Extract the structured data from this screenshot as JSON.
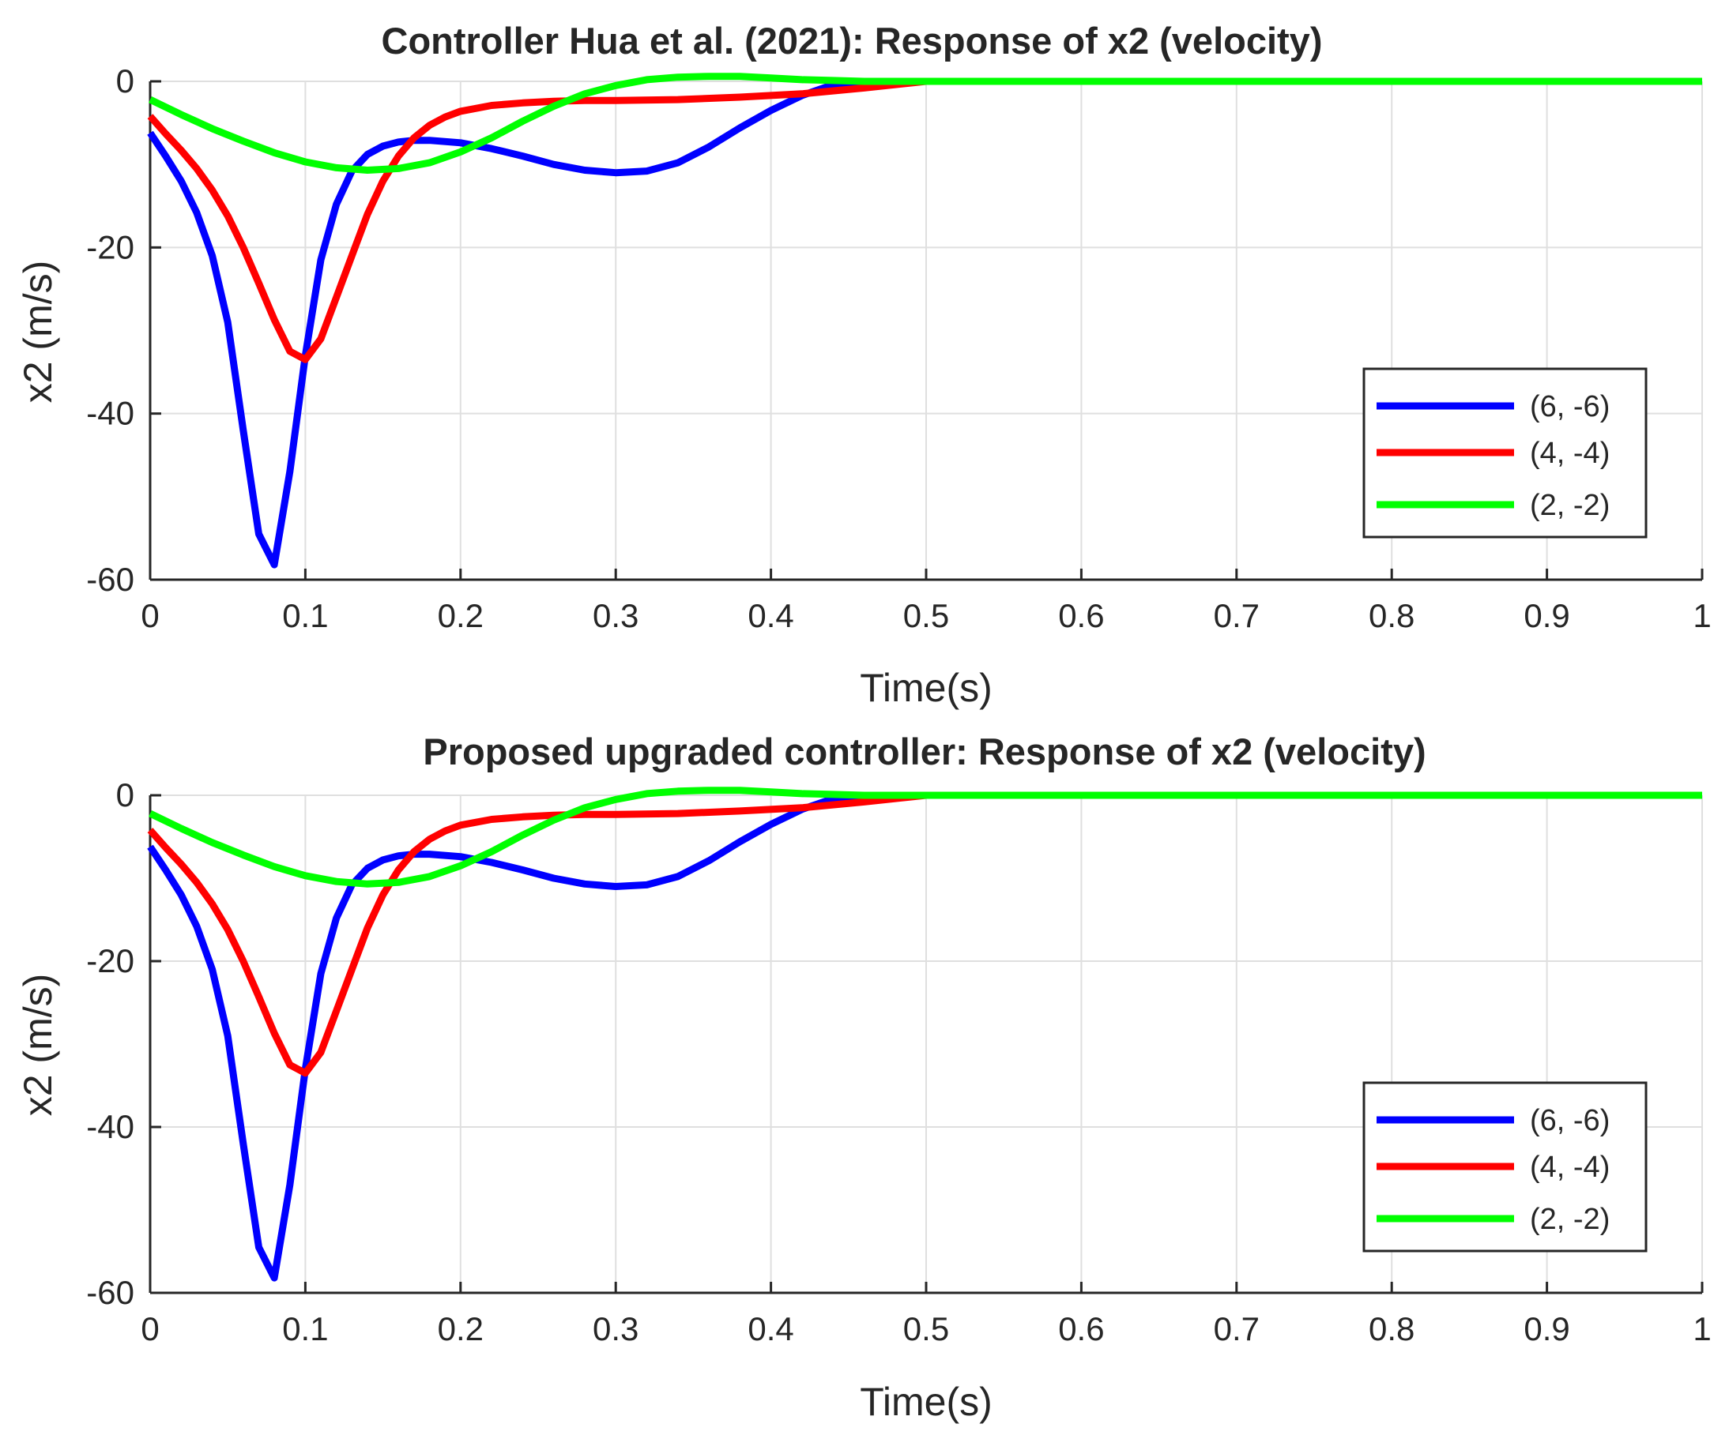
{
  "chart_data": [
    {
      "type": "line",
      "title": "Controller Hua et al. (2021): Response of x2 (velocity)",
      "xlabel": "Time(s)",
      "ylabel": "x2 (m/s)",
      "xlim": [
        0,
        1
      ],
      "ylim": [
        -60,
        0
      ],
      "xticks": [
        0,
        0.1,
        0.2,
        0.3,
        0.4,
        0.5,
        0.6,
        0.7,
        0.8,
        0.9,
        1
      ],
      "xtick_labels": [
        "0",
        "0.1",
        "0.2",
        "0.3",
        "0.4",
        "0.5",
        "0.6",
        "0.7",
        "0.8",
        "0.9",
        "1"
      ],
      "yticks": [
        0,
        -20,
        -40,
        -60
      ],
      "ytick_labels": [
        "0",
        "-20",
        "-40",
        "-60"
      ],
      "grid": true,
      "legend_position": "bottom-right",
      "series": [
        {
          "name": "(6, -6)",
          "color": "#0000ff",
          "x": [
            0,
            0.01,
            0.02,
            0.03,
            0.04,
            0.05,
            0.06,
            0.07,
            0.08,
            0.09,
            0.1,
            0.11,
            0.12,
            0.13,
            0.14,
            0.15,
            0.16,
            0.17,
            0.18,
            0.2,
            0.22,
            0.24,
            0.26,
            0.28,
            0.3,
            0.32,
            0.34,
            0.36,
            0.38,
            0.4,
            0.42,
            0.44,
            0.46,
            0.48,
            0.5,
            1
          ],
          "y": [
            -6.2,
            -9,
            -12,
            -15.8,
            -21,
            -29,
            -42,
            -54.5,
            -58.2,
            -47,
            -33,
            -21.5,
            -14.8,
            -10.8,
            -8.8,
            -7.8,
            -7.3,
            -7.1,
            -7.1,
            -7.4,
            -8.1,
            -9,
            -10,
            -10.7,
            -11,
            -10.8,
            -9.8,
            -7.9,
            -5.6,
            -3.5,
            -1.7,
            -0.4,
            0,
            0,
            0,
            0
          ]
        },
        {
          "name": "(4, -4)",
          "color": "#ff0000",
          "x": [
            0,
            0.01,
            0.02,
            0.03,
            0.04,
            0.05,
            0.06,
            0.07,
            0.08,
            0.09,
            0.1,
            0.11,
            0.12,
            0.13,
            0.14,
            0.15,
            0.16,
            0.17,
            0.18,
            0.19,
            0.2,
            0.22,
            0.24,
            0.26,
            0.28,
            0.3,
            0.34,
            0.38,
            0.42,
            0.46,
            0.5,
            1
          ],
          "y": [
            -4.2,
            -6.3,
            -8.3,
            -10.5,
            -13.1,
            -16.2,
            -20,
            -24.3,
            -28.7,
            -32.5,
            -33.5,
            -31,
            -26,
            -21,
            -16,
            -12,
            -9,
            -6.8,
            -5.3,
            -4.3,
            -3.6,
            -2.9,
            -2.6,
            -2.4,
            -2.3,
            -2.3,
            -2.2,
            -1.9,
            -1.5,
            -0.8,
            0,
            0
          ]
        },
        {
          "name": "(2, -2)",
          "color": "#00ff00",
          "x": [
            0,
            0.02,
            0.04,
            0.06,
            0.08,
            0.1,
            0.12,
            0.14,
            0.16,
            0.18,
            0.2,
            0.22,
            0.24,
            0.26,
            0.28,
            0.3,
            0.32,
            0.34,
            0.36,
            0.38,
            0.4,
            0.42,
            0.44,
            0.46,
            0.48,
            0.5,
            1
          ],
          "y": [
            -2.2,
            -4,
            -5.7,
            -7.2,
            -8.6,
            -9.7,
            -10.4,
            -10.7,
            -10.5,
            -9.8,
            -8.5,
            -6.8,
            -4.8,
            -3,
            -1.5,
            -0.5,
            0.2,
            0.5,
            0.6,
            0.6,
            0.4,
            0.2,
            0.1,
            0,
            0,
            0,
            0
          ]
        }
      ]
    },
    {
      "type": "line",
      "title": "Proposed upgraded controller: Response of x2 (velocity)",
      "xlabel": "Time(s)",
      "ylabel": "x2 (m/s)",
      "xlim": [
        0,
        1
      ],
      "ylim": [
        -60,
        0
      ],
      "xticks": [
        0,
        0.1,
        0.2,
        0.3,
        0.4,
        0.5,
        0.6,
        0.7,
        0.8,
        0.9,
        1
      ],
      "xtick_labels": [
        "0",
        "0.1",
        "0.2",
        "0.3",
        "0.4",
        "0.5",
        "0.6",
        "0.7",
        "0.8",
        "0.9",
        "1"
      ],
      "yticks": [
        0,
        -20,
        -40,
        -60
      ],
      "ytick_labels": [
        "0",
        "-20",
        "-40",
        "-60"
      ],
      "grid": true,
      "legend_position": "bottom-right",
      "series": [
        {
          "name": "(6, -6)",
          "color": "#0000ff",
          "x": [
            0,
            0.01,
            0.02,
            0.03,
            0.04,
            0.05,
            0.06,
            0.07,
            0.08,
            0.09,
            0.1,
            0.11,
            0.12,
            0.13,
            0.14,
            0.15,
            0.16,
            0.17,
            0.18,
            0.2,
            0.22,
            0.24,
            0.26,
            0.28,
            0.3,
            0.32,
            0.34,
            0.36,
            0.38,
            0.4,
            0.42,
            0.44,
            0.46,
            0.48,
            0.5,
            1
          ],
          "y": [
            -6.2,
            -9,
            -12,
            -15.8,
            -21,
            -29,
            -42,
            -54.5,
            -58.2,
            -47,
            -33,
            -21.5,
            -14.8,
            -10.8,
            -8.8,
            -7.8,
            -7.3,
            -7.1,
            -7.1,
            -7.4,
            -8.1,
            -9,
            -10,
            -10.7,
            -11,
            -10.8,
            -9.8,
            -7.9,
            -5.6,
            -3.5,
            -1.7,
            -0.4,
            0,
            0,
            0,
            0
          ]
        },
        {
          "name": "(4, -4)",
          "color": "#ff0000",
          "x": [
            0,
            0.01,
            0.02,
            0.03,
            0.04,
            0.05,
            0.06,
            0.07,
            0.08,
            0.09,
            0.1,
            0.11,
            0.12,
            0.13,
            0.14,
            0.15,
            0.16,
            0.17,
            0.18,
            0.19,
            0.2,
            0.22,
            0.24,
            0.26,
            0.28,
            0.3,
            0.34,
            0.38,
            0.42,
            0.46,
            0.5,
            1
          ],
          "y": [
            -4.2,
            -6.3,
            -8.3,
            -10.5,
            -13.1,
            -16.2,
            -20,
            -24.3,
            -28.7,
            -32.5,
            -33.5,
            -31,
            -26,
            -21,
            -16,
            -12,
            -9,
            -6.8,
            -5.3,
            -4.3,
            -3.6,
            -2.9,
            -2.6,
            -2.4,
            -2.3,
            -2.3,
            -2.2,
            -1.9,
            -1.5,
            -0.8,
            0,
            0
          ]
        },
        {
          "name": "(2, -2)",
          "color": "#00ff00",
          "x": [
            0,
            0.02,
            0.04,
            0.06,
            0.08,
            0.1,
            0.12,
            0.14,
            0.16,
            0.18,
            0.2,
            0.22,
            0.24,
            0.26,
            0.28,
            0.3,
            0.32,
            0.34,
            0.36,
            0.38,
            0.4,
            0.42,
            0.44,
            0.46,
            0.48,
            0.5,
            1
          ],
          "y": [
            -2.2,
            -4,
            -5.7,
            -7.2,
            -8.6,
            -9.7,
            -10.4,
            -10.7,
            -10.5,
            -9.8,
            -8.5,
            -6.8,
            -4.8,
            -3,
            -1.5,
            -0.5,
            0.2,
            0.5,
            0.6,
            0.6,
            0.4,
            0.2,
            0.1,
            0,
            0,
            0,
            0
          ]
        }
      ]
    }
  ]
}
